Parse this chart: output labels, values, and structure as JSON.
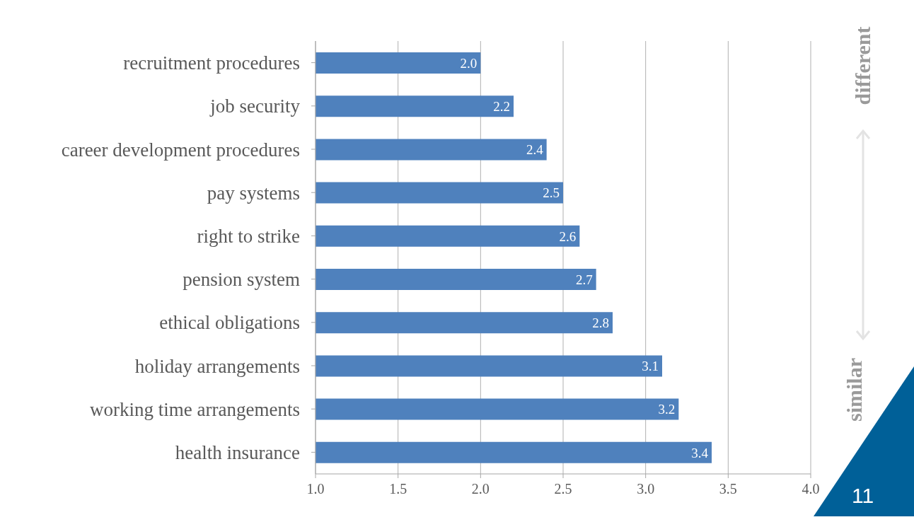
{
  "chart_data": {
    "type": "bar",
    "orientation": "horizontal",
    "categories": [
      "recruitment procedures",
      "job security",
      "career development procedures",
      "pay systems",
      "right to strike",
      "pension system",
      "ethical obligations",
      "holiday arrangements",
      "working time arrangements",
      "health insurance"
    ],
    "values": [
      2.0,
      2.2,
      2.4,
      2.5,
      2.6,
      2.7,
      2.8,
      3.1,
      3.2,
      3.4
    ],
    "color": "#4f81bd",
    "xlim": [
      1.0,
      4.0
    ],
    "xticks": [
      {
        "value": 1.0,
        "label": "1.0"
      },
      {
        "value": 1.5,
        "label": "1.5"
      },
      {
        "value": 2.0,
        "label": "2.0"
      },
      {
        "value": 2.5,
        "label": "2.5"
      },
      {
        "value": 3.0,
        "label": "3.0"
      },
      {
        "value": 3.5,
        "label": "3.5"
      },
      {
        "value": 4.0,
        "label": "4.0"
      }
    ],
    "grid": "x",
    "value_labels": [
      "2.0",
      "2.2",
      "2.4",
      "2.5",
      "2.6",
      "2.7",
      "2.8",
      "3.1",
      "3.2",
      "3.4"
    ],
    "annotations": [
      "different",
      "similar",
      "11"
    ]
  }
}
